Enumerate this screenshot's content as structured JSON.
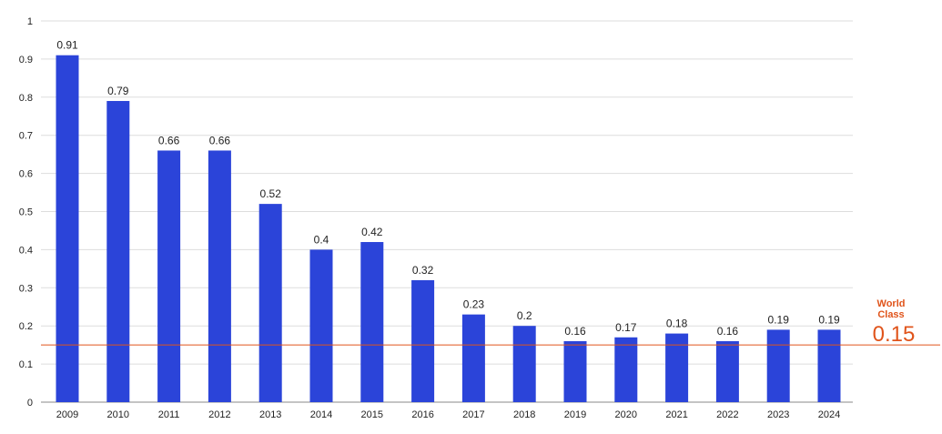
{
  "chart_data": {
    "type": "bar",
    "title": "",
    "xlabel": "",
    "ylabel": "",
    "categories": [
      "2009",
      "2010",
      "2011",
      "2012",
      "2013",
      "2014",
      "2015",
      "2016",
      "2017",
      "2018",
      "2019",
      "2020",
      "2021",
      "2022",
      "2023",
      "2024"
    ],
    "values": [
      0.91,
      0.79,
      0.66,
      0.66,
      0.52,
      0.4,
      0.42,
      0.32,
      0.23,
      0.2,
      0.16,
      0.17,
      0.18,
      0.16,
      0.19,
      0.19
    ],
    "data_labels": [
      "0.91",
      "0.79",
      "0.66",
      "0.66",
      "0.52",
      "0.4",
      "0.42",
      "0.32",
      "0.23",
      "0.2",
      "0.16",
      "0.17",
      "0.18",
      "0.16",
      "0.19",
      "0.19"
    ],
    "ylim": [
      0,
      1
    ],
    "yticks": [
      "0",
      "0.1",
      "0.2",
      "0.3",
      "0.4",
      "0.5",
      "0.6",
      "0.7",
      "0.8",
      "0.9",
      "1"
    ],
    "grid": true,
    "legend": "none",
    "bar_color": "#2b44d9",
    "reference_line": {
      "value": 0.15,
      "label_line1": "World",
      "label_line2": "Class",
      "value_label": "0.15",
      "color": "#e0541b"
    }
  }
}
